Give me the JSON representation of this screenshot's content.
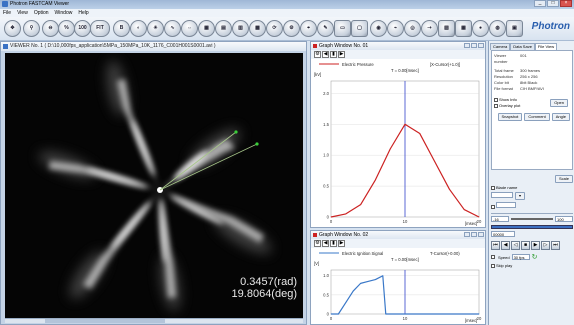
{
  "window": {
    "title": "Photron FASTCAM Viewer",
    "controls": [
      "_",
      "□",
      "×"
    ]
  },
  "menu": [
    "File",
    "View",
    "Option",
    "Window",
    "Help"
  ],
  "toolbar": {
    "fit_label": "FIT",
    "zoom_100_label": "100",
    "percent_label": "%",
    "b_label": "B",
    "brand": "Photron"
  },
  "viewer": {
    "title": "VIEWER No. 1 ( D:\\10,000fps_application\\5MPa_150MPa_10K_1176_C001H001S0001.avi )",
    "readout_rad": "0.3457(rad)",
    "readout_deg": "19.8064(deg)"
  },
  "graph1": {
    "title": "Graph Window No. 01",
    "legend_series": "Electric Pressure",
    "cursor_label": "[X-Cursor(+1.0)]",
    "time_label": "T = 0.00[msec]",
    "y_unit": "[kV]",
    "x_unit": "[msec]"
  },
  "graph2": {
    "title": "Graph Window No. 02",
    "legend_series": "Electric Ignition Signal",
    "cursor_label": "T-Cursor(+0.00)",
    "time_label": "T = 0.00[msec]",
    "y_unit": "[V]",
    "x_unit": "[msec]"
  },
  "chart_data": [
    {
      "type": "line",
      "title": "Graph Window No. 01",
      "series": [
        {
          "name": "Electric Pressure",
          "color": "#cc2222",
          "x": [
            0,
            2,
            4,
            6,
            8,
            10,
            12,
            14,
            16,
            18,
            20
          ],
          "y": [
            0.0,
            0.05,
            0.2,
            0.6,
            1.1,
            1.5,
            1.35,
            0.9,
            0.45,
            0.12,
            0.0
          ]
        }
      ],
      "y_ticks": [
        "2.0",
        "1.5",
        "1.0",
        "0.5",
        "0"
      ],
      "x_ticks": [
        "0",
        "10",
        "20"
      ],
      "ylim": [
        0,
        2.2
      ],
      "xlim": [
        0,
        20
      ],
      "cursor_x": 10
    },
    {
      "type": "line",
      "title": "Graph Window No. 02",
      "series": [
        {
          "name": "Electric Ignition Signal",
          "color": "#3a78c8",
          "x": [
            0,
            1,
            2,
            3,
            4,
            5,
            6,
            7,
            7.4,
            8,
            20
          ],
          "y": [
            0.0,
            0.0,
            0.3,
            0.6,
            0.8,
            0.85,
            0.9,
            1.0,
            0.0,
            0.0,
            0.0
          ]
        }
      ],
      "y_ticks": [
        "1.0",
        "0.5",
        "0"
      ],
      "x_ticks": [
        "0",
        "10",
        "20"
      ],
      "ylim": [
        0,
        1.15
      ],
      "xlim": [
        0,
        20
      ],
      "cursor_x": 10
    }
  ],
  "panel": {
    "tabs": [
      "Camera",
      "Data Save",
      "File View"
    ],
    "viewer_number_label": "Viewer number",
    "viewer_number_value": "001",
    "info_rows": [
      {
        "k": "Total frame",
        "v": "300 frames"
      },
      {
        "k": "Resolution",
        "v": "256 x 256"
      },
      {
        "k": "Color bit",
        "v": "8bit Black"
      },
      {
        "k": "File format",
        "v": "CIH BMP/AVI"
      }
    ],
    "show_info_label": "Show Info",
    "overlay_label": "Overlay plot",
    "open_label": "Open",
    "snapshot_label": "Snapshot",
    "comment_label": "Comment",
    "angle_label": "Angle",
    "scale_label": "Scale",
    "blade_label": "Blade name",
    "start_frame": "-16",
    "end_frame": "100",
    "current_frame": "00000",
    "speed_label": "Speed",
    "speed_value": "30 fps",
    "skip_label": "Skip play"
  }
}
